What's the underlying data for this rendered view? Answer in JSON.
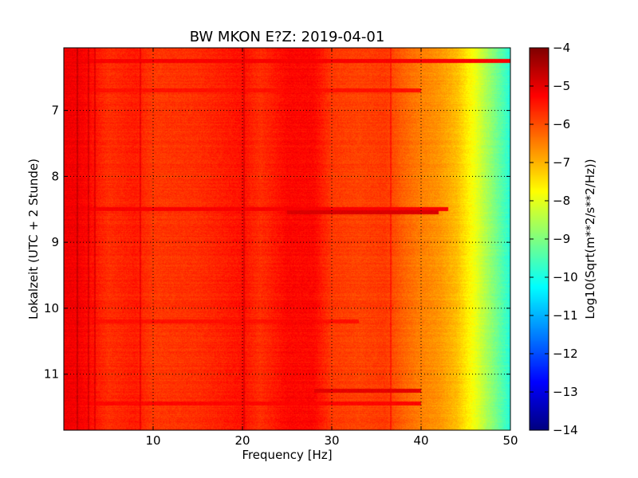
{
  "chart_data": {
    "type": "heatmap",
    "title": "BW MKON E?Z: 2019-04-01",
    "xlabel": "Frequency [Hz]",
    "ylabel": "Lokalzeit (UTC + 2 Stunde)",
    "xlim": [
      0,
      50
    ],
    "ylim": [
      6.05,
      11.85
    ],
    "y_inverted": true,
    "x_ticks": [
      10,
      20,
      30,
      40,
      50
    ],
    "y_ticks": [
      7,
      8,
      9,
      10,
      11
    ],
    "grid": true,
    "colormap": "jet",
    "colorbar": {
      "label": "Log10(Sqrt(m**2/s**2/Hz))",
      "range": [
        -14,
        -4
      ],
      "ticks": [
        -4,
        -5,
        -6,
        -7,
        -8,
        -9,
        -10,
        -11,
        -12,
        -13,
        -14
      ]
    },
    "spectrum_profile": {
      "frequency_hz": [
        0,
        2,
        5,
        8,
        10,
        15,
        20,
        22,
        25,
        28,
        30,
        33,
        36,
        38,
        40,
        42,
        43,
        44,
        45,
        46,
        47,
        48,
        49,
        50
      ],
      "log10_amplitude": [
        -5.1,
        -5.2,
        -5.7,
        -5.5,
        -5.8,
        -5.7,
        -5.4,
        -5.7,
        -5.3,
        -5.3,
        -5.8,
        -5.9,
        -5.8,
        -6.2,
        -6.5,
        -6.7,
        -6.9,
        -7.1,
        -7.5,
        -7.9,
        -8.4,
        -8.9,
        -9.4,
        -9.9
      ]
    },
    "vertical_lines_hz": [
      1.5,
      2.8,
      3.5,
      8.6,
      20.2,
      36.6
    ],
    "horizontal_bands": [
      {
        "time": 6.25,
        "f_from": 0,
        "f_to": 50,
        "level": -5.2
      },
      {
        "time": 6.7,
        "f_from": 0,
        "f_to": 40,
        "level": -5.4
      },
      {
        "time": 8.5,
        "f_from": 0,
        "f_to": 43,
        "level": -5.2
      },
      {
        "time": 8.55,
        "f_from": 25,
        "f_to": 42,
        "level": -4.9
      },
      {
        "time": 10.2,
        "f_from": 0,
        "f_to": 33,
        "level": -5.4
      },
      {
        "time": 11.25,
        "f_from": 28,
        "f_to": 40,
        "level": -5.0
      },
      {
        "time": 11.45,
        "f_from": 0,
        "f_to": 40,
        "level": -5.3
      }
    ]
  }
}
